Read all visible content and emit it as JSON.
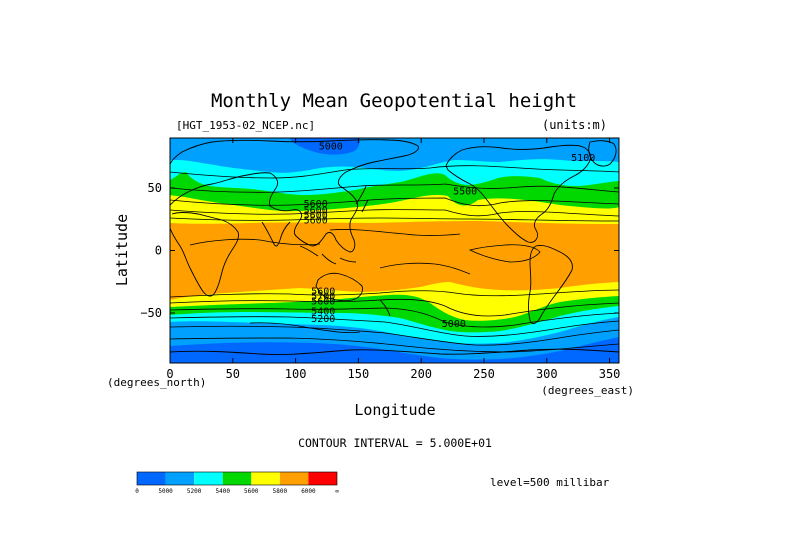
{
  "chart_data": {
    "type": "heatmap",
    "title": "Monthly Mean Geopotential height",
    "file_label": "[HGT_1953-02_NCEP.nc]",
    "units_label": "(units:m)",
    "xlabel": "Longitude",
    "xunits": "(degrees_east)",
    "ylabel": "Latitude",
    "yunits": "(degrees_north)",
    "xlim": [
      0,
      357.5
    ],
    "ylim": [
      -90,
      90
    ],
    "xticks": [
      "0",
      "50",
      "100",
      "150",
      "200",
      "250",
      "300",
      "350"
    ],
    "xtick_values": [
      0,
      50,
      100,
      150,
      200,
      250,
      300,
      350
    ],
    "yticks": [
      "50",
      "0",
      "−50"
    ],
    "ytick_values": [
      50,
      0,
      -50
    ],
    "contour_interval_label": "CONTOUR INTERVAL = 5.000E+01",
    "level_label": "level=500 millibar",
    "contour_labels": [
      {
        "text": "5000",
        "x": 128,
        "y": 84
      },
      {
        "text": "5100",
        "x": 329,
        "y": 75
      },
      {
        "text": "5500",
        "x": 235,
        "y": 48
      },
      {
        "text": "5600",
        "x": 116,
        "y": 38
      },
      {
        "text": "5600",
        "x": 116,
        "y": 33
      },
      {
        "text": "5600",
        "x": 116,
        "y": 29
      },
      {
        "text": "5600",
        "x": 116,
        "y": 25
      },
      {
        "text": "5600",
        "x": 122,
        "y": -32
      },
      {
        "text": "5700",
        "x": 122,
        "y": -36
      },
      {
        "text": "5600",
        "x": 122,
        "y": -40
      },
      {
        "text": "5400",
        "x": 122,
        "y": -48
      },
      {
        "text": "5200",
        "x": 122,
        "y": -54
      },
      {
        "text": "5000",
        "x": 226,
        "y": -58
      }
    ],
    "colorbar": {
      "colors": [
        "#0068ff",
        "#00a0ff",
        "#00ffff",
        "#00d800",
        "#ffff00",
        "#ffa000",
        "#ff0000"
      ],
      "labels": [
        "0",
        "5000",
        "5200",
        "5400",
        "5600",
        "5800",
        "6000",
        "∞"
      ]
    }
  }
}
